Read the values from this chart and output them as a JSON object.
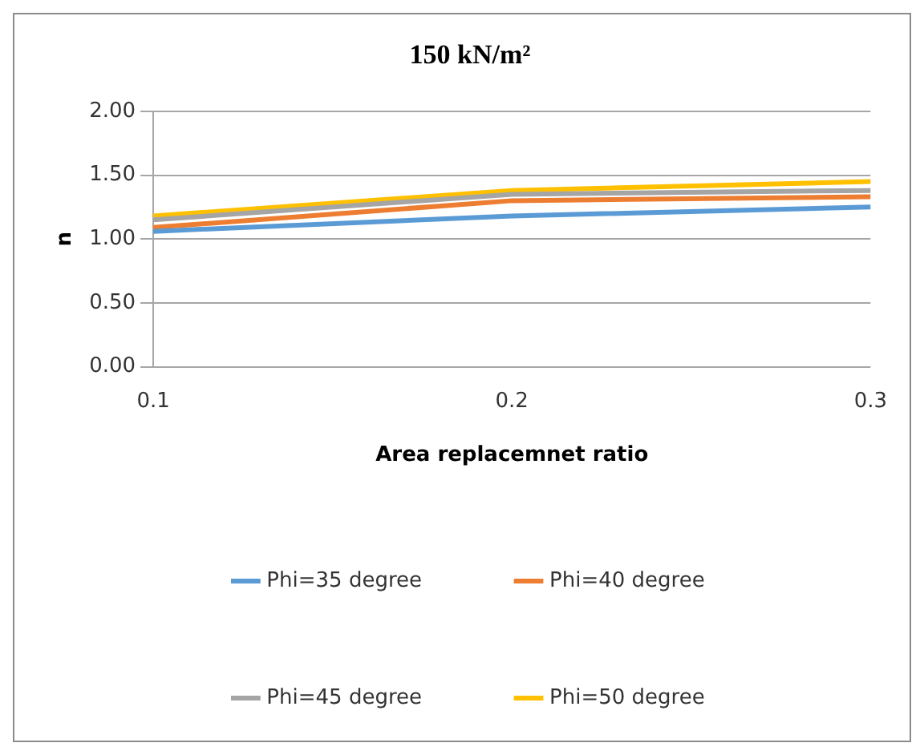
{
  "chart_data": {
    "type": "line",
    "title": "150 kN/m²",
    "xlabel": "Area replacemnet ratio",
    "ylabel": "n",
    "categories": [
      "0.1",
      "0.2",
      "0.3"
    ],
    "series": [
      {
        "name": "Phi=35 degree",
        "color": "#5b9bd5",
        "values": [
          1.06,
          1.18,
          1.25
        ]
      },
      {
        "name": "Phi=40 degree",
        "color": "#ed7d31",
        "values": [
          1.09,
          1.3,
          1.33
        ]
      },
      {
        "name": "Phi=45 degree",
        "color": "#a5a5a5",
        "values": [
          1.15,
          1.35,
          1.38
        ]
      },
      {
        "name": "Phi=50 degree",
        "color": "#ffc000",
        "values": [
          1.18,
          1.38,
          1.45
        ]
      }
    ],
    "ylim": [
      0,
      2
    ],
    "yticks": [
      {
        "value": 0,
        "label": "0.00"
      },
      {
        "value": 0.5,
        "label": "0.50"
      },
      {
        "value": 1,
        "label": "1.00"
      },
      {
        "value": 1.5,
        "label": "1.50"
      },
      {
        "value": 2,
        "label": "2.00"
      }
    ],
    "grid": "y",
    "legend": "bottom",
    "marker": "none",
    "line_style": "solid"
  }
}
